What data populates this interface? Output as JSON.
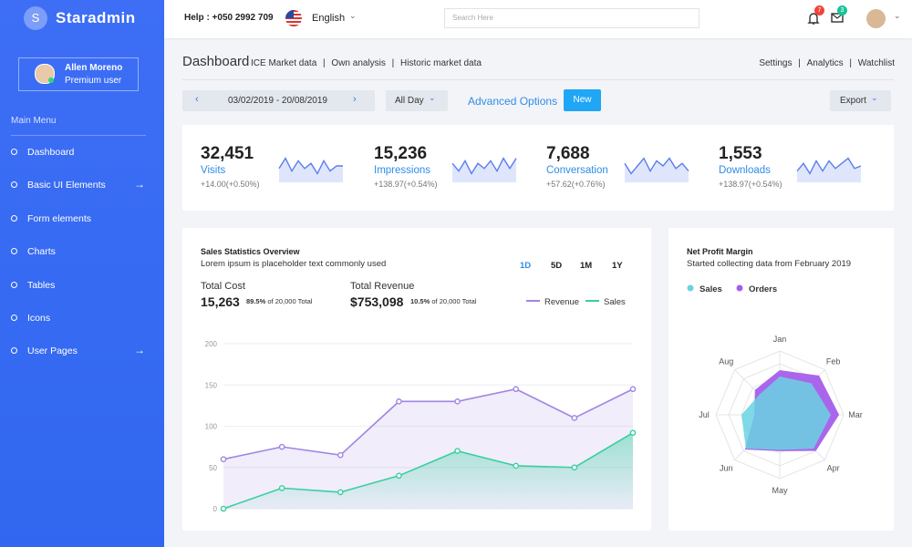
{
  "sidebar": {
    "brand_initial": "S",
    "brand": "Staradmin",
    "user": {
      "name": "Allen Moreno",
      "role": "Premium user"
    },
    "menu_title": "Main Menu",
    "menu": [
      "Dashboard",
      "Basic UI Elements",
      "Form elements",
      "Charts",
      "Tables",
      "Icons",
      "User Pages"
    ]
  },
  "topbar": {
    "help": "Help : +050 2992 709",
    "language": "English",
    "search_placeholder": "Search Here",
    "notifications": "7",
    "messages": "3"
  },
  "header": {
    "title": "Dashboard",
    "links": [
      "ICE Market data",
      "Own analysis",
      "Historic market data"
    ],
    "right_links": [
      "Settings",
      "Analytics",
      "Watchlist"
    ]
  },
  "toolbar": {
    "date_range": "03/02/2019 - 20/08/2019",
    "period": "All Day",
    "advanced": "Advanced Options",
    "new": "New",
    "export": "Export"
  },
  "stats": [
    {
      "value": "32,451",
      "label": "Visits",
      "change": "+14.00(+0.50%)",
      "ylim": [
        0,
        10
      ],
      "sparkline": [
        4,
        8,
        3,
        7,
        4,
        6,
        2,
        7,
        3,
        5,
        5
      ]
    },
    {
      "value": "15,236",
      "label": "Impressions",
      "change": "+138.97(+0.54%)",
      "ylim": [
        0,
        10
      ],
      "sparkline": [
        6,
        3,
        7,
        2,
        6,
        4,
        7,
        3,
        8,
        4,
        8
      ]
    },
    {
      "value": "7,688",
      "label": "Conversation",
      "change": "+57.62(+0.76%)",
      "ylim": [
        0,
        10
      ],
      "sparkline": [
        6,
        2,
        5,
        8,
        3,
        7,
        5,
        8,
        4,
        6,
        3
      ]
    },
    {
      "value": "1,553",
      "label": "Downloads",
      "change": "+138.97(+0.54%)",
      "ylim": [
        0,
        10
      ],
      "sparkline": [
        3,
        6,
        2,
        7,
        3,
        7,
        4,
        6,
        8,
        4,
        5
      ]
    }
  ],
  "sales": {
    "title": "Sales Statistics Overview",
    "subtitle": "Lorem ipsum is placeholder text commonly used",
    "ranges": [
      "1D",
      "5D",
      "1M",
      "1Y"
    ],
    "total_cost": {
      "label": "Total Cost",
      "value": "15,263",
      "percent": "89.5%",
      "note": "of 20,000 Total"
    },
    "total_revenue": {
      "label": "Total Revenue",
      "value": "$753,098",
      "percent": "10.5%",
      "note": "of 20,000 Total"
    },
    "chart": {
      "type": "area",
      "ylim": [
        0,
        200
      ],
      "yticks": [
        0,
        50,
        100,
        150,
        200
      ],
      "grid": true,
      "series": [
        {
          "name": "Revenue",
          "color": "#a184e3",
          "values": [
            60,
            75,
            65,
            130,
            130,
            145,
            110,
            145
          ]
        },
        {
          "name": "Sales",
          "color": "#38cf9e",
          "values": [
            0,
            25,
            20,
            40,
            70,
            52,
            50,
            92
          ]
        }
      ]
    }
  },
  "profit": {
    "title": "Net Profit Margin",
    "subtitle": "Started collecting data from February 2019",
    "chart": {
      "type": "radar",
      "categories": [
        "Jan",
        "Feb",
        "Mar",
        "Apr",
        "May",
        "Jun",
        "Jul",
        "Aug"
      ],
      "ylim": [
        0,
        100
      ],
      "series": [
        {
          "name": "Sales",
          "color": "#6ad2e3",
          "values": [
            60,
            70,
            80,
            75,
            55,
            75,
            60,
            45
          ]
        },
        {
          "name": "Orders",
          "color": "#a55eea",
          "values": [
            70,
            87,
            93,
            80,
            57,
            77,
            40,
            55
          ]
        }
      ]
    }
  }
}
